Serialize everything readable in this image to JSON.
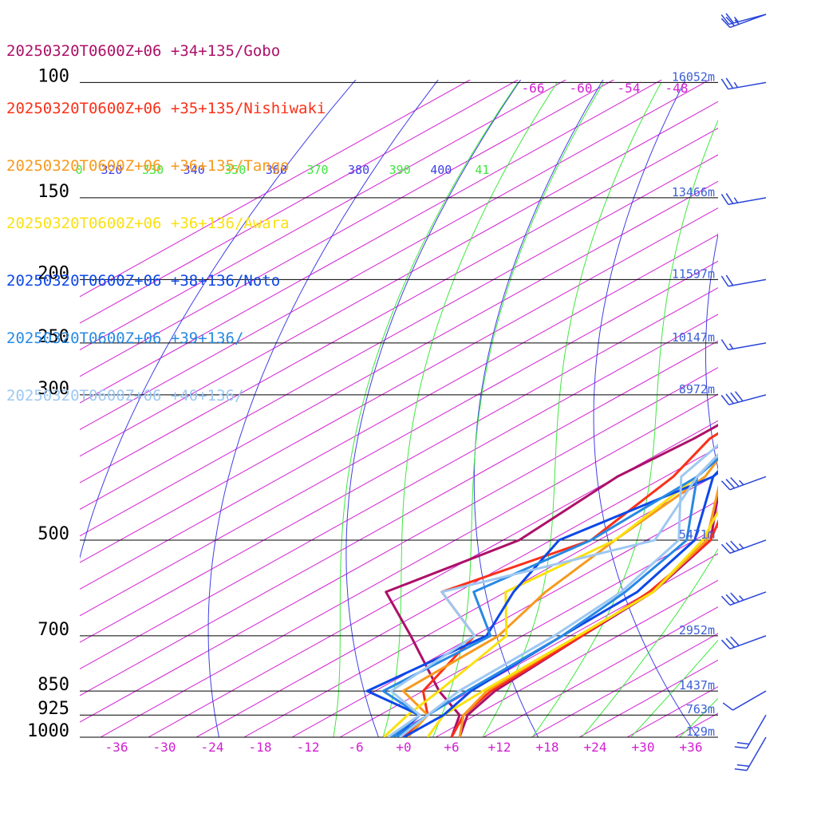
{
  "colors": {
    "isobar": "#000000",
    "isotherm": "#d21fd2",
    "dry_adiabat": "#3f3fe6",
    "moist_adiabat": "#3ee83e",
    "height_label": "#3b5fd8",
    "wind_barb": "#2a45d8"
  },
  "chart_data": {
    "type": "line",
    "title": "",
    "pressure_levels": [
      100,
      150,
      200,
      250,
      300,
      500,
      700,
      850,
      925,
      1000
    ],
    "height_labels": [
      {
        "p": 100,
        "label": "16052m"
      },
      {
        "p": 150,
        "label": "13466m"
      },
      {
        "p": 200,
        "label": "11597m"
      },
      {
        "p": 250,
        "label": "10147m"
      },
      {
        "p": 300,
        "label": "8972m"
      },
      {
        "p": 500,
        "label": "5471m"
      },
      {
        "p": 700,
        "label": "2952m"
      },
      {
        "p": 850,
        "label": "1437m"
      },
      {
        "p": 925,
        "label": "763m"
      },
      {
        "p": 1000,
        "label": "129m"
      }
    ],
    "temperature_ticks": [
      "-36",
      "-30",
      "-24",
      "-18",
      "-12",
      "-6",
      "+0",
      "+6",
      "+12",
      "+18",
      "+24",
      "+30",
      "+36"
    ],
    "upper_temperature_labels": [
      "-66",
      "-60",
      "-54",
      "-48"
    ],
    "theta_labels": [
      {
        "text": "0",
        "kind": "moist"
      },
      {
        "text": "320",
        "kind": "dry"
      },
      {
        "text": "330",
        "kind": "moist"
      },
      {
        "text": "340",
        "kind": "dry"
      },
      {
        "text": "350",
        "kind": "moist"
      },
      {
        "text": "360",
        "kind": "dry"
      },
      {
        "text": "370",
        "kind": "moist"
      },
      {
        "text": "380",
        "kind": "dry"
      },
      {
        "text": "390",
        "kind": "moist"
      },
      {
        "text": "400",
        "kind": "dry"
      },
      {
        "text": "41",
        "kind": "moist"
      }
    ],
    "series": [
      {
        "name": "20250320T0600Z+06 +34+135/Gobo",
        "color": "#ad1069",
        "temperature": [
          [
            1000,
            7
          ],
          [
            925,
            3
          ],
          [
            850,
            1
          ],
          [
            700,
            -0.5
          ],
          [
            600,
            -1.5
          ],
          [
            500,
            -6
          ],
          [
            400,
            -19
          ],
          [
            300,
            -15
          ],
          [
            250,
            -4
          ],
          [
            220,
            0
          ],
          [
            200,
            -0.5
          ],
          [
            150,
            -3
          ],
          [
            120,
            -4
          ],
          [
            100,
            5
          ],
          [
            80,
            9
          ],
          [
            65,
            21
          ],
          [
            50,
            36
          ]
        ],
        "dewpoint": [
          [
            1000,
            6
          ],
          [
            925,
            2
          ],
          [
            850,
            -6
          ],
          [
            700,
            -22
          ],
          [
            600,
            -35
          ],
          [
            500,
            -30
          ],
          [
            400,
            -32
          ],
          [
            350,
            -31
          ],
          [
            300,
            -31
          ]
        ],
        "winds": [
          [
            1000,
            30,
            20
          ],
          [
            925,
            30,
            20
          ],
          [
            850,
            60,
            10
          ],
          [
            700,
            70,
            30
          ],
          [
            600,
            70,
            35
          ],
          [
            500,
            70,
            35
          ],
          [
            400,
            70,
            35
          ],
          [
            300,
            75,
            40
          ],
          [
            250,
            80,
            15
          ],
          [
            200,
            80,
            20
          ],
          [
            150,
            80,
            25
          ],
          [
            100,
            80,
            25
          ],
          [
            70,
            75,
            25
          ],
          [
            50,
            70,
            25
          ]
        ]
      },
      {
        "name": "20250320T0600Z+06 +35+135/Nishiwaki",
        "color": "#fb3018",
        "temperature": [
          [
            1000,
            6
          ],
          [
            925,
            2.5
          ],
          [
            850,
            0.5
          ],
          [
            700,
            -0.5
          ],
          [
            600,
            -2
          ],
          [
            500,
            -6
          ],
          [
            400,
            -17
          ],
          [
            350,
            -22
          ],
          [
            300,
            -22
          ],
          [
            250,
            -13
          ],
          [
            225,
            -4
          ],
          [
            200,
            -1
          ],
          [
            150,
            -3
          ],
          [
            100,
            3
          ],
          [
            80,
            10
          ],
          [
            65,
            20
          ],
          [
            50,
            34
          ]
        ],
        "dewpoint": [
          [
            1000,
            0
          ],
          [
            925,
            -2
          ],
          [
            850,
            -8
          ],
          [
            700,
            -14
          ],
          [
            600,
            -28
          ],
          [
            500,
            -21
          ],
          [
            400,
            -25
          ],
          [
            350,
            -29
          ],
          [
            300,
            -30
          ]
        ]
      },
      {
        "name": "20250320T0600Z+06 +36+135/Tango",
        "color": "#f79a1f",
        "temperature": [
          [
            1000,
            7
          ],
          [
            925,
            2.5
          ],
          [
            850,
            0
          ],
          [
            700,
            -1
          ],
          [
            600,
            -1.5
          ],
          [
            500,
            -6.5
          ],
          [
            400,
            -19
          ],
          [
            350,
            -22
          ],
          [
            300,
            -23
          ],
          [
            250,
            -16
          ],
          [
            225,
            -8
          ],
          [
            200,
            -1
          ],
          [
            150,
            -3
          ],
          [
            100,
            3
          ],
          [
            80,
            11
          ],
          [
            65,
            22
          ],
          [
            50,
            37
          ]
        ],
        "dewpoint": [
          [
            1000,
            0.5
          ],
          [
            925,
            -2
          ],
          [
            850,
            -10.5
          ],
          [
            700,
            -11
          ],
          [
            600,
            -15
          ],
          [
            500,
            -18
          ],
          [
            400,
            -21
          ],
          [
            350,
            -26
          ],
          [
            300,
            -27
          ]
        ]
      },
      {
        "name": "20250320T0600Z+06 +36+136/Awara",
        "color": "#fae110",
        "temperature": [
          [
            1000,
            3
          ],
          [
            925,
            0
          ],
          [
            850,
            -0.5
          ],
          [
            700,
            -1
          ],
          [
            600,
            -1.5
          ],
          [
            500,
            -7
          ],
          [
            400,
            -17
          ],
          [
            350,
            -22.5
          ],
          [
            300,
            -24
          ],
          [
            260,
            -19.5
          ],
          [
            225,
            -11
          ],
          [
            200,
            -1.5
          ],
          [
            150,
            -3
          ],
          [
            100,
            3
          ],
          [
            80,
            11
          ],
          [
            65,
            23
          ],
          [
            50,
            39
          ]
        ],
        "dewpoint": [
          [
            1000,
            -2.5
          ],
          [
            925,
            -4.5
          ],
          [
            850,
            -6
          ],
          [
            700,
            -10
          ],
          [
            600,
            -20
          ],
          [
            500,
            -18
          ],
          [
            400,
            -22
          ],
          [
            350,
            -26
          ],
          [
            300,
            -27
          ]
        ]
      },
      {
        "name": "20250320T0600Z+06 +38+136/Noto",
        "color": "#0d48e8",
        "temperature": [
          [
            1000,
            0
          ],
          [
            925,
            0
          ],
          [
            850,
            -2
          ],
          [
            700,
            -3
          ],
          [
            600,
            -3.5
          ],
          [
            500,
            -8
          ],
          [
            400,
            -20
          ],
          [
            350,
            -23
          ],
          [
            300,
            -25.5
          ],
          [
            250,
            -19
          ],
          [
            200,
            -2.5
          ],
          [
            150,
            -3.5
          ],
          [
            100,
            4
          ],
          [
            80,
            14
          ],
          [
            65,
            25
          ],
          [
            50,
            40
          ]
        ],
        "dewpoint": [
          [
            1000,
            -1
          ],
          [
            925,
            -3
          ],
          [
            850,
            -15
          ],
          [
            700,
            -12.5
          ],
          [
            600,
            -19
          ],
          [
            500,
            -25
          ],
          [
            400,
            -20
          ],
          [
            350,
            -24
          ],
          [
            300,
            -25
          ]
        ]
      },
      {
        "name": "20250320T0600Z+06 +39+136/",
        "color": "#2789e3",
        "temperature": [
          [
            1000,
            -1
          ],
          [
            925,
            -2
          ],
          [
            850,
            -2.5
          ],
          [
            700,
            -3
          ],
          [
            600,
            -5
          ],
          [
            500,
            -9
          ],
          [
            400,
            -22
          ],
          [
            350,
            -25
          ],
          [
            300,
            -26
          ],
          [
            250,
            -18
          ],
          [
            200,
            -3.5
          ],
          [
            150,
            -4
          ],
          [
            100,
            3
          ],
          [
            80,
            13
          ],
          [
            65,
            25
          ],
          [
            50,
            42
          ]
        ],
        "dewpoint": [
          [
            1000,
            -1.5
          ],
          [
            925,
            -3
          ],
          [
            850,
            -13
          ],
          [
            700,
            -12
          ],
          [
            600,
            -24
          ],
          [
            500,
            -21
          ],
          [
            400,
            -22
          ],
          [
            350,
            -26
          ],
          [
            300,
            -27
          ]
        ]
      },
      {
        "name": "20250320T0600Z+06 +40+136/",
        "color": "#9ec8f2",
        "temperature": [
          [
            1000,
            -0.5
          ],
          [
            925,
            -2
          ],
          [
            850,
            -3.5
          ],
          [
            700,
            -4
          ],
          [
            600,
            -5.5
          ],
          [
            500,
            -10
          ],
          [
            400,
            -24
          ],
          [
            350,
            -27
          ],
          [
            300,
            -27
          ],
          [
            260,
            -19
          ],
          [
            225,
            -9
          ],
          [
            200,
            -5
          ],
          [
            160,
            -3.5
          ],
          [
            150,
            -3
          ],
          [
            120,
            -6
          ],
          [
            100,
            3
          ],
          [
            80,
            15
          ],
          [
            65,
            28
          ],
          [
            50,
            44
          ]
        ],
        "dewpoint": [
          [
            1000,
            -2
          ],
          [
            925,
            -3
          ],
          [
            850,
            -12
          ],
          [
            700,
            -14
          ],
          [
            600,
            -28
          ],
          [
            500,
            -13
          ],
          [
            400,
            -22
          ],
          [
            350,
            -26
          ],
          [
            300,
            -27
          ]
        ]
      }
    ]
  }
}
